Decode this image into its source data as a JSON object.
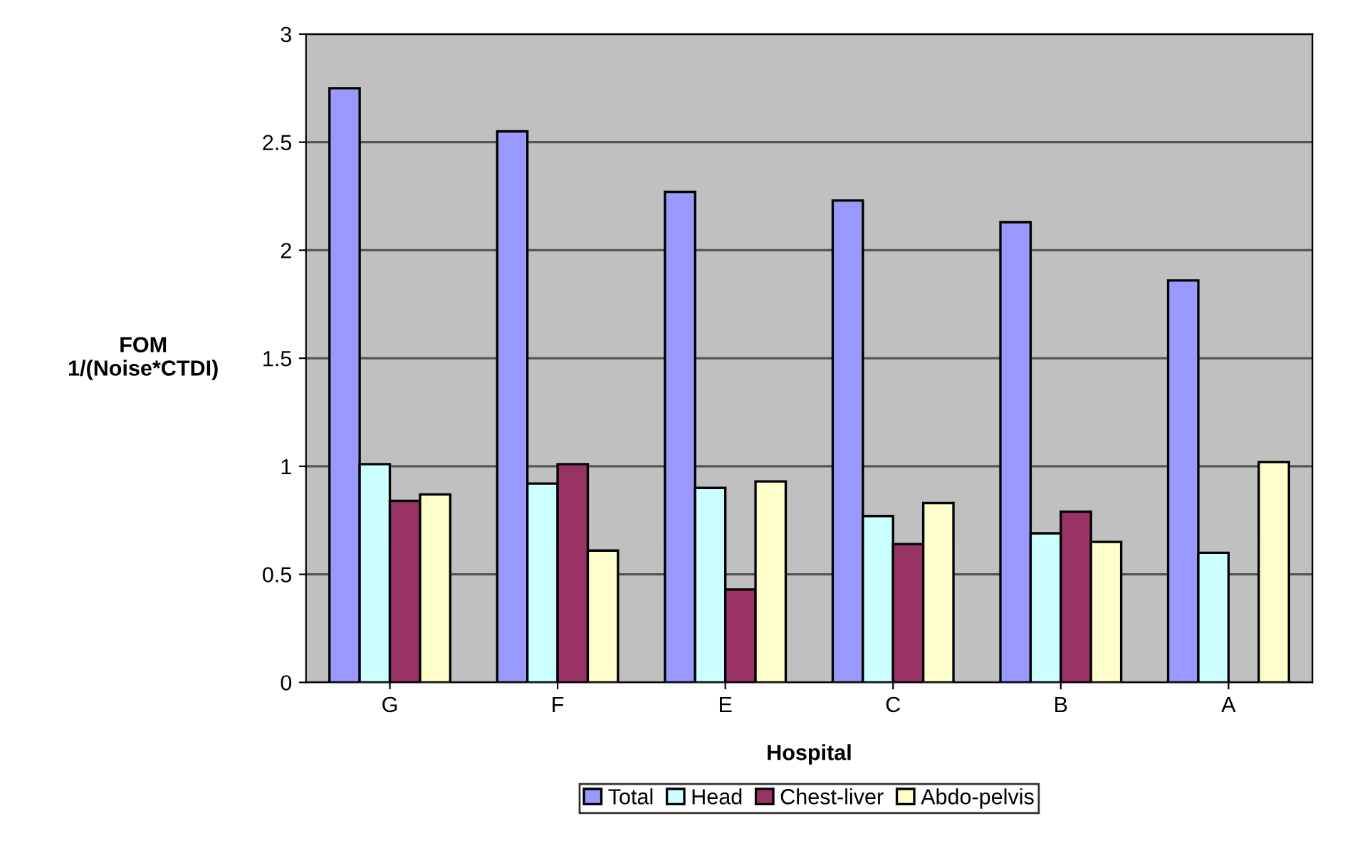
{
  "chart_data": {
    "type": "bar",
    "xlabel": "Hospital",
    "ylabel": "FOM\n1/(Noise*CTDI)",
    "categories": [
      "G",
      "F",
      "E",
      "C",
      "B",
      "A"
    ],
    "series": [
      {
        "name": "Total",
        "color": "#9999ff",
        "values": [
          2.75,
          2.55,
          2.27,
          2.23,
          2.13,
          1.86
        ]
      },
      {
        "name": "Head",
        "color": "#ccffff",
        "values": [
          1.01,
          0.92,
          0.9,
          0.77,
          0.69,
          0.6
        ]
      },
      {
        "name": "Chest-liver",
        "color": "#993366",
        "values": [
          0.84,
          1.01,
          0.43,
          0.64,
          0.79,
          null
        ]
      },
      {
        "name": "Abdo-pelvis",
        "color": "#ffffcc",
        "values": [
          0.87,
          0.61,
          0.93,
          0.83,
          0.65,
          1.02
        ]
      }
    ],
    "ylim": [
      0,
      3
    ],
    "yticks": [
      0,
      0.5,
      1,
      1.5,
      2,
      2.5,
      3
    ],
    "grid": "y",
    "legend": "bottom"
  }
}
